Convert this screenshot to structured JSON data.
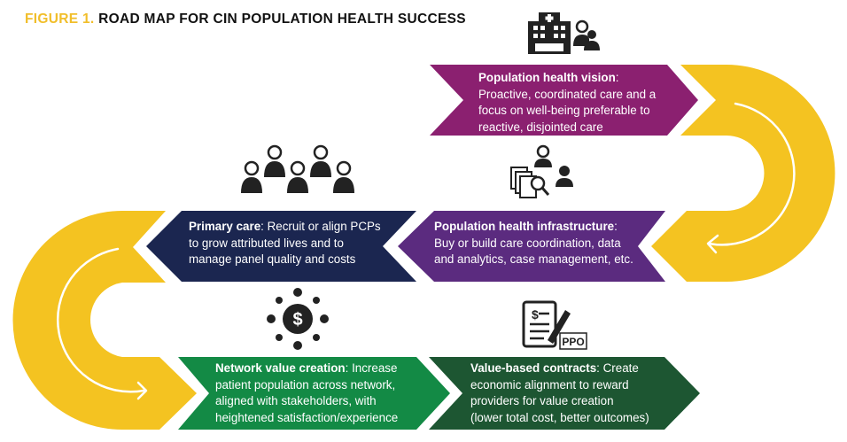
{
  "title": {
    "figure_label": "FIGURE 1.",
    "text": "ROAD MAP FOR CIN POPULATION HEALTH SUCCESS"
  },
  "colors": {
    "title_accent": "#F1BE2A",
    "arrow_yellow": "#F4C321",
    "vision": "#8B2070",
    "infrastructure": "#5B2B7F",
    "primary_care": "#1B2650",
    "network": "#138A45",
    "contracts": "#1D5632"
  },
  "steps": [
    {
      "heading": "Population health vision",
      "sep": ":",
      "body_lines": [
        "Proactive, coordinated care and a",
        "focus on well-being preferable to",
        "reactive, disjointed care"
      ],
      "icon": "hospital-with-doctors-icon"
    },
    {
      "heading": "Population health infrastructure",
      "sep": ":",
      "body_lines": [
        "Buy or build care coordination, data",
        "and analytics, case management, etc."
      ],
      "icon": "data-analytics-team-icon"
    },
    {
      "heading": "Primary care",
      "sep": ":",
      "first_line_rest": " Recruit or align PCPs",
      "body_lines": [
        "to grow attributed lives and to",
        "manage panel quality and costs"
      ],
      "icon": "physician-group-icon"
    },
    {
      "heading": "Network value creation",
      "sep": ":",
      "first_line_rest": " Increase",
      "body_lines": [
        "patient population across network,",
        "aligned with stakeholders, with",
        "heightened satisfaction/experience"
      ],
      "icon": "stakeholders-money-icon"
    },
    {
      "heading": "Value-based contracts",
      "sep": ":",
      "first_line_rest": " Create",
      "body_lines": [
        "economic alignment to reward",
        "providers for value creation",
        "(lower total cost, better outcomes)"
      ],
      "icon": "contract-ppo-icon"
    }
  ],
  "ppo_label": "PPO"
}
